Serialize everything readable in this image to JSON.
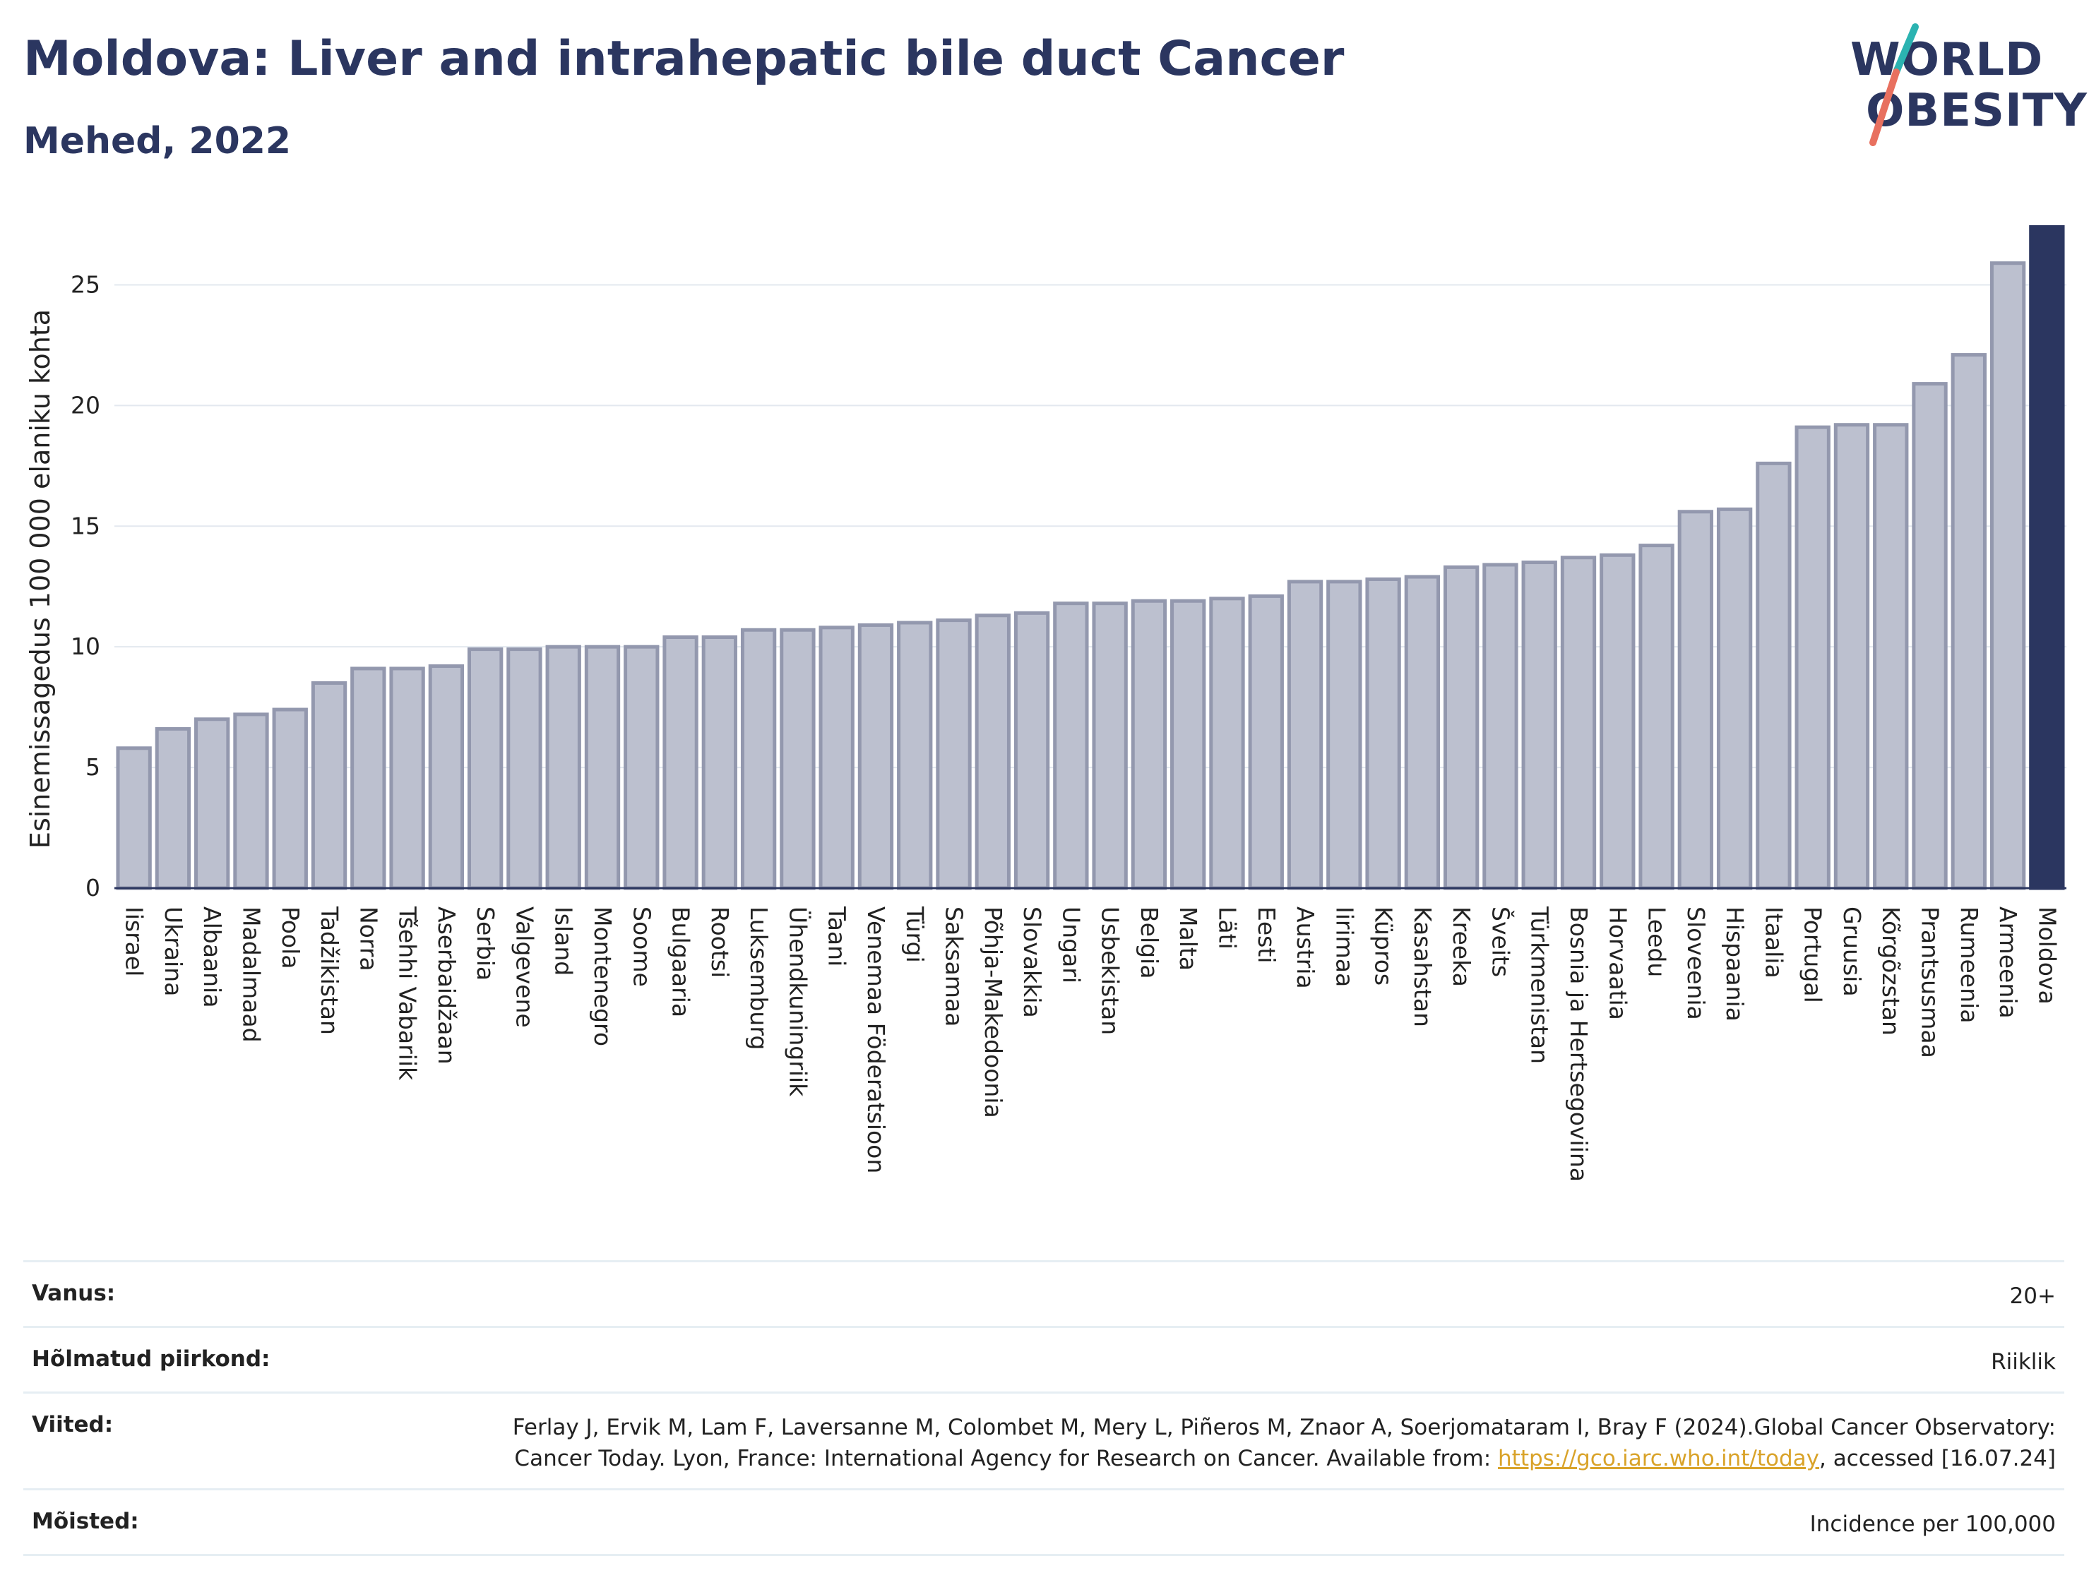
{
  "header": {
    "title": "Moldova: Liver and intrahepatic bile duct Cancer",
    "subtitle": "Mehed, 2022"
  },
  "logo": {
    "line1": "WORLD",
    "line2": "OBESITY",
    "colors": {
      "text": "#2b3660",
      "slash_teal": "#2bb3b1",
      "slash_coral": "#e8705f"
    }
  },
  "chart_data": {
    "type": "bar",
    "title": "",
    "xlabel": "",
    "ylabel": "Esinemissagedus 100 000 elaniku kohta",
    "ylim": [
      0,
      27.5
    ],
    "yticks": [
      0,
      5,
      10,
      15,
      20,
      25
    ],
    "grid": true,
    "highlight": "Moldova",
    "colors": {
      "bar": "#bcc0cf",
      "bar_edge": "#9398ae",
      "highlight": "#2b3660"
    },
    "categories": [
      "Iisrael",
      "Ukraina",
      "Albaania",
      "Madalmaad",
      "Poola",
      "Tadžikistan",
      "Norra",
      "Tšehhi Vabariik",
      "Aserbaidžaan",
      "Serbia",
      "Valgevene",
      "Island",
      "Montenegro",
      "Soome",
      "Bulgaaria",
      "Rootsi",
      "Luksemburg",
      "Ühendkuningriik",
      "Taani",
      "Venemaa Föderatsioon",
      "Türgi",
      "Saksamaa",
      "Põhja-Makedoonia",
      "Slovakkia",
      "Ungari",
      "Usbekistan",
      "Belgia",
      "Malta",
      "Läti",
      "Eesti",
      "Austria",
      "Iirimaa",
      "Küpros",
      "Kasahstan",
      "Kreeka",
      "Šveits",
      "Türkmenistan",
      "Bosnia ja Hertsegoviina",
      "Horvaatia",
      "Leedu",
      "Sloveenia",
      "Hispaania",
      "Itaalia",
      "Portugal",
      "Gruusia",
      "Kõrgõzstan",
      "Prantsusmaa",
      "Rumeenia",
      "Armeenia",
      "Moldova"
    ],
    "values": [
      5.8,
      6.6,
      7.0,
      7.2,
      7.4,
      8.5,
      9.1,
      9.1,
      9.2,
      9.9,
      9.9,
      10.0,
      10.0,
      10.0,
      10.4,
      10.4,
      10.7,
      10.7,
      10.8,
      10.9,
      11.0,
      11.1,
      11.3,
      11.4,
      11.8,
      11.8,
      11.9,
      11.9,
      12.0,
      12.1,
      12.7,
      12.7,
      12.8,
      12.9,
      13.3,
      13.4,
      13.5,
      13.7,
      13.8,
      14.2,
      15.6,
      15.7,
      17.6,
      19.1,
      19.2,
      19.2,
      20.9,
      22.1,
      25.9,
      27.4
    ]
  },
  "meta": {
    "age_label": "Vanus:",
    "age_value": "20+",
    "region_label": "Hõlmatud piirkond:",
    "region_value": "Riiklik",
    "refs_label": "Viited:",
    "refs_text": "Ferlay J, Ervik M, Lam F, Laversanne M, Colombet M, Mery L, Piñeros M, Znaor A, Soerjomataram I, Bray F (2024).Global Cancer Observatory: Cancer Today. Lyon, France: International Agency for Research on Cancer. Available from: ",
    "refs_link": "https://gco.iarc.who.int/today",
    "refs_suffix": ", accessed [16.07.24]",
    "defs_label": "Mõisted:",
    "defs_value": "Incidence per 100,000"
  }
}
